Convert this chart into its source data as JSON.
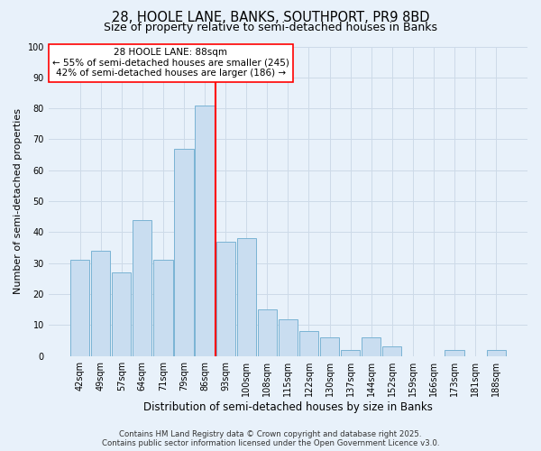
{
  "title": "28, HOOLE LANE, BANKS, SOUTHPORT, PR9 8BD",
  "subtitle": "Size of property relative to semi-detached houses in Banks",
  "xlabel": "Distribution of semi-detached houses by size in Banks",
  "ylabel": "Number of semi-detached properties",
  "bar_labels": [
    "42sqm",
    "49sqm",
    "57sqm",
    "64sqm",
    "71sqm",
    "79sqm",
    "86sqm",
    "93sqm",
    "100sqm",
    "108sqm",
    "115sqm",
    "122sqm",
    "130sqm",
    "137sqm",
    "144sqm",
    "152sqm",
    "159sqm",
    "166sqm",
    "173sqm",
    "181sqm",
    "188sqm"
  ],
  "bar_values": [
    31,
    34,
    27,
    44,
    31,
    67,
    81,
    37,
    38,
    15,
    12,
    8,
    6,
    2,
    6,
    3,
    0,
    0,
    2,
    0,
    2
  ],
  "bar_color": "#c9ddf0",
  "bar_edge_color": "#7ab3d4",
  "grid_color": "#cddae8",
  "background_color": "#e8f1fa",
  "vline_color": "red",
  "vline_pos": 6.5,
  "annotation_title": "28 HOOLE LANE: 88sqm",
  "annotation_line1": "← 55% of semi-detached houses are smaller (245)",
  "annotation_line2": "42% of semi-detached houses are larger (186) →",
  "annotation_box_edge": "red",
  "annotation_box_fill": "white",
  "footer1": "Contains HM Land Registry data © Crown copyright and database right 2025.",
  "footer2": "Contains public sector information licensed under the Open Government Licence v3.0.",
  "ylim": [
    0,
    100
  ],
  "yticks": [
    0,
    10,
    20,
    30,
    40,
    50,
    60,
    70,
    80,
    90,
    100
  ],
  "title_fontsize": 10.5,
  "subtitle_fontsize": 9,
  "xlabel_fontsize": 8.5,
  "ylabel_fontsize": 8,
  "tick_fontsize": 7,
  "annot_fontsize": 7.5,
  "footer_fontsize": 6.2
}
